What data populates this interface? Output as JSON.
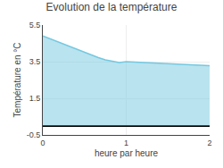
{
  "chart_data": {
    "type": "area",
    "title": "Evolution de la température",
    "xlabel": "heure par heure",
    "ylabel": "Température en °C",
    "x": [
      0.0,
      0.083,
      0.167,
      0.25,
      0.333,
      0.417,
      0.5,
      0.583,
      0.667,
      0.75,
      0.833,
      0.917,
      1.0,
      1.083,
      1.167,
      1.25,
      1.333,
      1.417,
      1.5,
      1.583,
      1.667,
      1.75,
      1.833,
      1.917,
      2.0
    ],
    "values": [
      4.9,
      4.75,
      4.6,
      4.45,
      4.3,
      4.15,
      4.0,
      3.85,
      3.72,
      3.6,
      3.52,
      3.45,
      3.5,
      3.48,
      3.45,
      3.43,
      3.42,
      3.41,
      3.4,
      3.38,
      3.36,
      3.34,
      3.32,
      3.3,
      3.28
    ],
    "color": "#74c8e0",
    "xlim": [
      0,
      2
    ],
    "ylim": [
      -0.5,
      5.5
    ],
    "xticks": [
      0,
      1,
      2
    ],
    "yticks": [
      5.5,
      3.5,
      1.5,
      -0.5
    ],
    "grid": true
  }
}
